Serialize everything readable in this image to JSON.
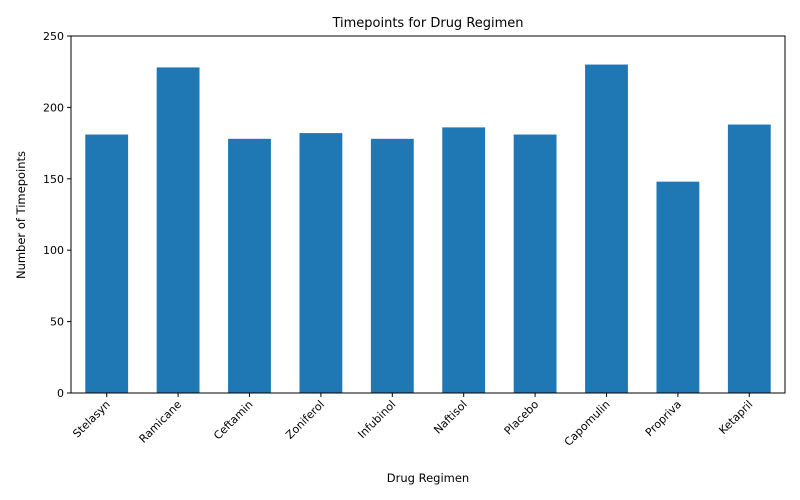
{
  "chart_data": {
    "type": "bar",
    "title": "Timepoints for Drug Regimen",
    "xlabel": "Drug Regimen",
    "ylabel": "Number of Timepoints",
    "categories": [
      "Stelasyn",
      "Ramicane",
      "Ceftamin",
      "Zoniferol",
      "Infubinol",
      "Naftisol",
      "Placebo",
      "Capomulin",
      "Propriva",
      "Ketapril"
    ],
    "values": [
      181,
      228,
      178,
      182,
      178,
      186,
      181,
      230,
      148,
      188
    ],
    "ylim": [
      0,
      250
    ],
    "yticks": [
      0,
      50,
      100,
      150,
      200,
      250
    ],
    "bar_color": "#1f77b4",
    "grid": false,
    "legend": false,
    "xtick_rotation": 45
  }
}
